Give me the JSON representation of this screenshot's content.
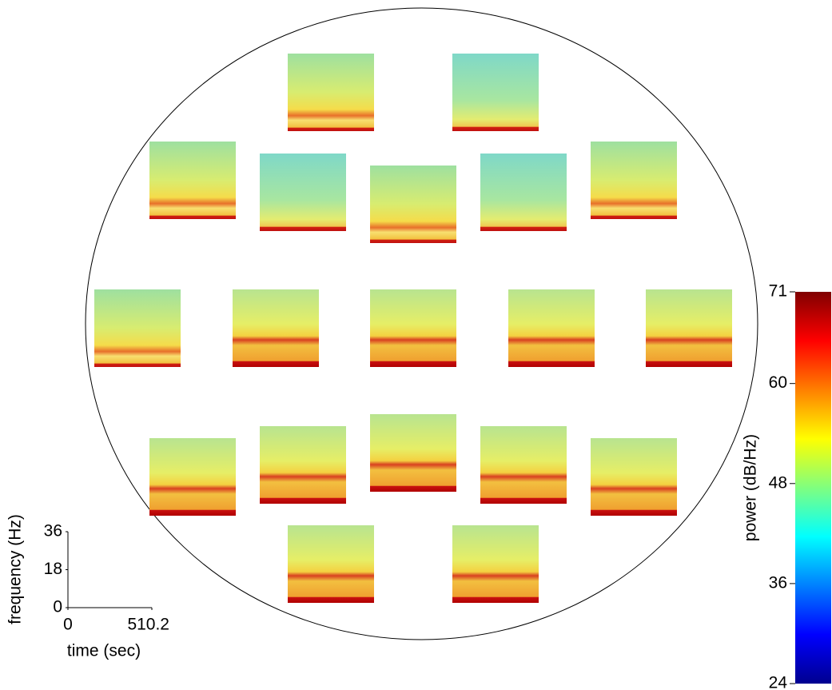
{
  "chart_data": {
    "type": "heatmap",
    "colorbar": {
      "label": "power (dB/Hz)",
      "lim": [
        24,
        71
      ],
      "ticks": [
        24,
        36,
        48,
        60,
        71
      ]
    },
    "scale_axes": {
      "xlabel": "time (sec)",
      "ylabel": "frequency (Hz)",
      "xlim": [
        0,
        510.2
      ],
      "xticks": [
        0,
        510.2
      ],
      "ylim": [
        0,
        36
      ],
      "yticks": [
        0,
        18,
        36
      ]
    }
  }
}
